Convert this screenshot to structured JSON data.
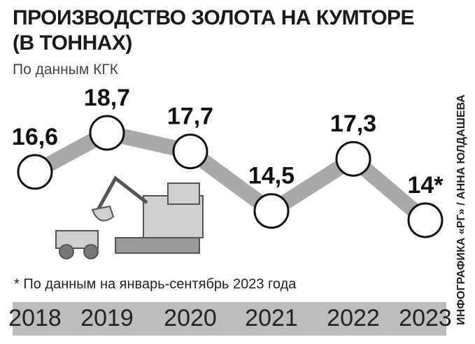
{
  "chart_data": {
    "type": "line",
    "title": "ПРОИЗВОДСТВО ЗОЛОТА НА КУМТОРЕ (В ТОННАХ)",
    "subtitle": "По данным КГК",
    "categories": [
      "2018",
      "2019",
      "2020",
      "2021",
      "2022",
      "2023"
    ],
    "values": [
      16.6,
      18.7,
      17.7,
      14.5,
      17.3,
      14
    ],
    "value_labels": [
      "16,6",
      "18,7",
      "17,7",
      "14,5",
      "17,3",
      "14*"
    ],
    "color": "#a9a9a9",
    "footnote": "* По данным на январь-сентябрь 2023 года",
    "credit": "ИНФОГРАФИКА «РГ» / АННА ЮЛДАШЕВА"
  }
}
